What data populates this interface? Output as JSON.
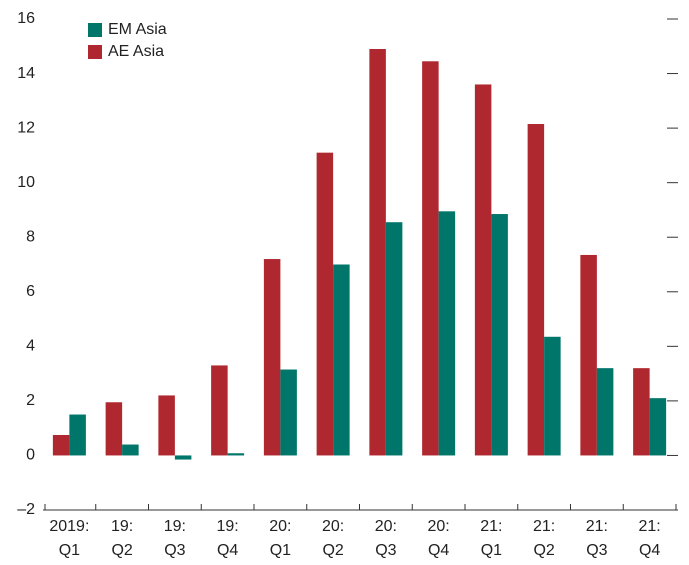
{
  "chart_data": {
    "type": "bar",
    "categories": [
      [
        "2019:",
        "Q1"
      ],
      [
        "19:",
        "Q2"
      ],
      [
        "19:",
        "Q3"
      ],
      [
        "19:",
        "Q4"
      ],
      [
        "20:",
        "Q1"
      ],
      [
        "20:",
        "Q2"
      ],
      [
        "20:",
        "Q3"
      ],
      [
        "20:",
        "Q4"
      ],
      [
        "21:",
        "Q1"
      ],
      [
        "21:",
        "Q2"
      ],
      [
        "21:",
        "Q3"
      ],
      [
        "21:",
        "Q4"
      ]
    ],
    "series": [
      {
        "name": "AE Asia",
        "color": "#b0282f",
        "values": [
          0.75,
          1.95,
          2.2,
          3.3,
          7.2,
          11.1,
          14.9,
          14.45,
          13.6,
          12.15,
          7.35,
          3.2
        ]
      },
      {
        "name": "EM Asia",
        "color": "#00756a",
        "values": [
          1.5,
          0.4,
          -0.15,
          0.08,
          3.15,
          7.0,
          8.55,
          8.95,
          8.85,
          4.35,
          3.2,
          2.1
        ]
      }
    ],
    "ylim": [
      -2,
      16
    ],
    "yticks": [
      {
        "value": -2,
        "label": "–2"
      },
      0,
      2,
      4,
      6,
      8,
      10,
      12,
      14,
      16
    ]
  }
}
